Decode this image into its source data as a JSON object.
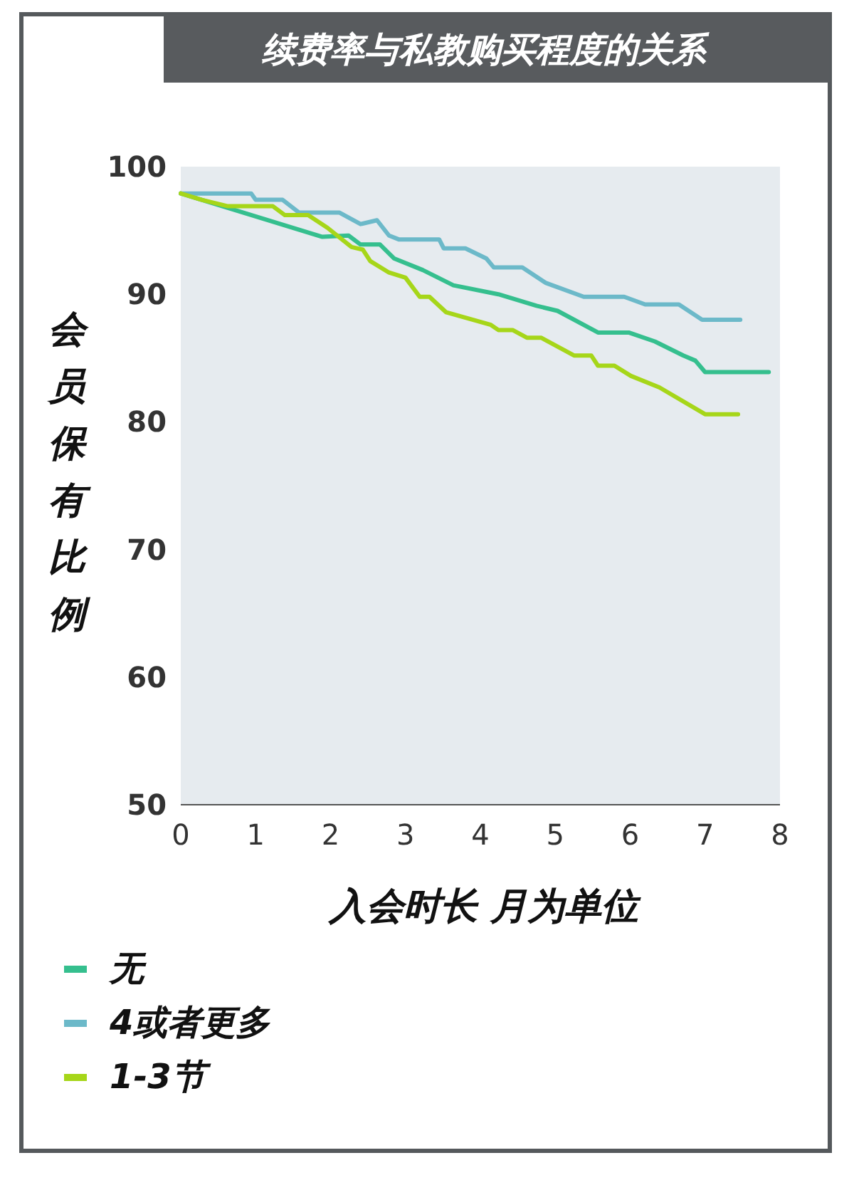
{
  "chart_data": {
    "type": "line",
    "title": "续费率与私教购买程度的关系",
    "xlabel": "入会时长 月为单位",
    "ylabel": "会员保有比例",
    "xlim": [
      0,
      8
    ],
    "xticks": [
      0,
      1,
      2,
      3,
      4,
      5,
      6,
      7,
      8
    ],
    "ylim": [
      50,
      100
    ],
    "yticks": [
      50,
      60,
      70,
      80,
      90,
      100
    ],
    "grid": false,
    "legend": "bottom",
    "marker": "none",
    "line_style": "solid",
    "series": [
      {
        "name": "无",
        "color": "#35bf8e",
        "x": [
          0,
          1.89,
          2.24,
          2.4,
          2.66,
          2.85,
          3.23,
          3.64,
          4.24,
          4.75,
          5.03,
          5.57,
          5.98,
          6.33,
          6.71,
          6.87,
          7.0,
          7.85
        ],
        "values": [
          97.9,
          94.5,
          94.6,
          93.9,
          93.9,
          92.8,
          91.9,
          90.7,
          90.0,
          89.1,
          88.7,
          87.0,
          87.0,
          86.3,
          85.2,
          84.8,
          83.9,
          83.9
        ]
      },
      {
        "name": "4或者更多",
        "color": "#6cb9c9",
        "x": [
          0,
          0.94,
          1.0,
          1.36,
          1.58,
          2.12,
          2.4,
          2.62,
          2.78,
          2.91,
          3.45,
          3.51,
          3.8,
          4.08,
          4.18,
          4.56,
          4.87,
          5.38,
          5.92,
          6.2,
          6.65,
          6.96,
          7.47
        ],
        "values": [
          97.9,
          97.9,
          97.4,
          97.4,
          96.4,
          96.4,
          95.5,
          95.8,
          94.6,
          94.3,
          94.3,
          93.6,
          93.6,
          92.8,
          92.1,
          92.1,
          90.9,
          89.8,
          89.8,
          89.2,
          89.2,
          88.0,
          88.0
        ]
      },
      {
        "name": "1-3节",
        "color": "#a6d619",
        "x": [
          0,
          0.28,
          0.63,
          1.23,
          1.39,
          1.7,
          1.96,
          2.28,
          2.43,
          2.53,
          2.78,
          3.0,
          3.19,
          3.32,
          3.54,
          4.14,
          4.24,
          4.43,
          4.62,
          4.81,
          5.25,
          5.48,
          5.57,
          5.79,
          6.01,
          6.39,
          7.0,
          7.44
        ],
        "values": [
          97.9,
          97.4,
          96.9,
          96.9,
          96.2,
          96.2,
          95.2,
          93.7,
          93.5,
          92.6,
          91.7,
          91.3,
          89.8,
          89.8,
          88.6,
          87.6,
          87.2,
          87.2,
          86.6,
          86.6,
          85.2,
          85.2,
          84.4,
          84.4,
          83.6,
          82.7,
          80.6,
          80.6
        ]
      }
    ]
  }
}
